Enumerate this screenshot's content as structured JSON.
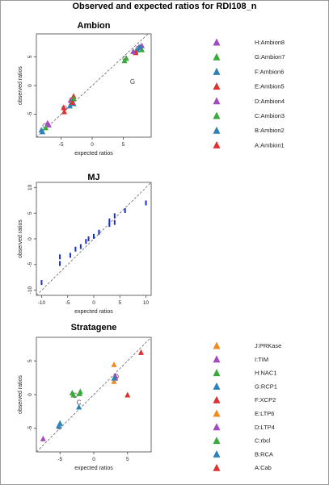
{
  "figure_title": "Observed and expected ratios for RDI108_n",
  "chart_data": [
    {
      "type": "scatter",
      "title": "Ambion",
      "xlabel": "expected ratios",
      "ylabel": "observed ratios",
      "xlim": [
        -9,
        9.5
      ],
      "ylim": [
        -9,
        9
      ],
      "xticks": [
        -5,
        0,
        5
      ],
      "yticks": [
        -5,
        0,
        5
      ],
      "diagonal": true,
      "marker": "triangle",
      "annotations": [
        {
          "text": "G",
          "x": 6.5,
          "y": 0.3
        }
      ],
      "legend": [
        "H:Ambion8",
        "G:Ambion7",
        "F:Ambion6",
        "E:Ambion5",
        "D:Ambion4",
        "C:Ambion3",
        "B:Ambion2",
        "A:Ambion1"
      ],
      "legend_colors": [
        "#a349c2",
        "#3aaa3a",
        "#2e82b8",
        "#e03030",
        "#a349c2",
        "#3aaa3a",
        "#2e82b8",
        "#e03030"
      ],
      "series": [
        {
          "name": "H:Ambion8",
          "color": "#a349c2",
          "points": [
            [
              8,
              7
            ],
            [
              7.5,
              6.7
            ],
            [
              -7,
              -6.8
            ],
            [
              -3.5,
              -2.5
            ]
          ]
        },
        {
          "name": "G:Ambion7",
          "color": "#3aaa3a",
          "points": [
            [
              7,
              6
            ],
            [
              5.5,
              4.8
            ],
            [
              -3.3,
              -2.8
            ],
            [
              -7.5,
              -7.3
            ]
          ]
        },
        {
          "name": "F:Ambion6",
          "color": "#2e82b8",
          "points": [
            [
              7.3,
              6.3
            ],
            [
              -8.2,
              -7.7
            ],
            [
              -3,
              -3.1
            ]
          ]
        },
        {
          "name": "E:Ambion5",
          "color": "#e03030",
          "points": [
            [
              -4.5,
              -4.5
            ],
            [
              -3,
              -1.8
            ],
            [
              7,
              5.8
            ]
          ]
        },
        {
          "name": "D:Ambion4",
          "color": "#a349c2",
          "points": [
            [
              6.6,
              6
            ],
            [
              -7.2,
              -6.5
            ]
          ]
        },
        {
          "name": "C:Ambion3",
          "color": "#3aaa3a",
          "points": [
            [
              -3,
              -2.2
            ],
            [
              8,
              6.3
            ],
            [
              5.2,
              4.4
            ]
          ]
        },
        {
          "name": "B:Ambion2",
          "color": "#2e82b8",
          "points": [
            [
              -8,
              -8
            ],
            [
              -3.6,
              -3.5
            ],
            [
              7.7,
              6.8
            ]
          ]
        },
        {
          "name": "A:Ambion1",
          "color": "#e03030",
          "points": [
            [
              -4.6,
              -3.8
            ],
            [
              -3.2,
              -2.9
            ]
          ]
        }
      ],
      "open_circles": [
        [
          5.3,
          4.7
        ],
        [
          7.4,
          6.5
        ],
        [
          -4.5,
          -3.9
        ],
        [
          -7.6,
          -7.0
        ],
        [
          -3.1,
          -2.4
        ]
      ]
    },
    {
      "type": "scatter",
      "title": "MJ",
      "xlabel": "expected ratios",
      "ylabel": "observed ratios",
      "xlim": [
        -11,
        11
      ],
      "ylim": [
        -11,
        11
      ],
      "xticks": [
        -10,
        -5,
        0,
        5,
        10
      ],
      "yticks": [
        -10,
        -5,
        0,
        5,
        10
      ],
      "diagonal": true,
      "marker": "vbar",
      "color": "#1a2fd0",
      "points": [
        [
          -10,
          -8.5
        ],
        [
          -6.5,
          -3.5
        ],
        [
          -6.5,
          -4.8
        ],
        [
          -4.5,
          -3.2
        ],
        [
          -3.5,
          -2
        ],
        [
          -2.5,
          -1.5
        ],
        [
          -1.5,
          -0.5
        ],
        [
          -1,
          0
        ],
        [
          0,
          0.5
        ],
        [
          1,
          1.3
        ],
        [
          3,
          2.8
        ],
        [
          3,
          3.5
        ],
        [
          4,
          3.2
        ],
        [
          4,
          4.5
        ],
        [
          6,
          5.5
        ],
        [
          10,
          7
        ]
      ]
    },
    {
      "type": "scatter",
      "title": "Stratagene",
      "xlabel": "expected ratios",
      "ylabel": "observed ratios",
      "xlim": [
        -8.5,
        8.5
      ],
      "ylim": [
        -8.5,
        8.5
      ],
      "xticks": [
        -5,
        0,
        5
      ],
      "yticks": [
        -5,
        0,
        5
      ],
      "diagonal": true,
      "marker": "triangle",
      "annotations": [
        {
          "text": "C",
          "x": -2.2,
          "y": -1.5
        }
      ],
      "legend": [
        "J:PRKase",
        "I:TIM",
        "H:NAC1",
        "G:RCP1",
        "F:XCP2",
        "E:LTP6",
        "D:LTP4",
        "C:rbcl",
        "B:RCA",
        "A:Cab"
      ],
      "legend_colors": [
        "#f28a1c",
        "#a349c2",
        "#3aaa3a",
        "#2e82b8",
        "#e03030",
        "#f28a1c",
        "#a349c2",
        "#3aaa3a",
        "#2e82b8",
        "#e03030"
      ],
      "series": [
        {
          "name": "J:PRKase",
          "color": "#f28a1c",
          "points": [
            [
              3,
              4.5
            ]
          ]
        },
        {
          "name": "I:TIM",
          "color": "#a349c2",
          "points": [
            [
              -7.5,
              -6.5
            ],
            [
              3.2,
              2.5
            ]
          ]
        },
        {
          "name": "H:NAC1",
          "color": "#3aaa3a",
          "points": [
            [
              -3.2,
              0.3
            ],
            [
              -2,
              0.5
            ]
          ]
        },
        {
          "name": "G:RCP1",
          "color": "#2e82b8",
          "points": [
            [
              -5.2,
              -4.6
            ],
            [
              -2.2,
              -1.8
            ]
          ]
        },
        {
          "name": "F:XCP2",
          "color": "#e03030",
          "points": [
            [
              5,
              0
            ]
          ]
        },
        {
          "name": "E:LTP6",
          "color": "#f28a1c",
          "points": [
            [
              3,
              2
            ]
          ]
        },
        {
          "name": "D:LTP4",
          "color": "#a349c2",
          "points": [
            [
              3.2,
              2.8
            ]
          ]
        },
        {
          "name": "C:rbcl",
          "color": "#3aaa3a",
          "points": [
            [
              -3,
              0
            ],
            [
              -2.1,
              0.2
            ]
          ]
        },
        {
          "name": "B:RCA",
          "color": "#2e82b8",
          "points": [
            [
              -5,
              -4.2
            ],
            [
              3,
              2.5
            ]
          ]
        },
        {
          "name": "A:Cab",
          "color": "#e03030",
          "points": [
            [
              7,
              6.3
            ]
          ]
        }
      ],
      "open_circles": [
        [
          -2.8,
          -0.1
        ],
        [
          3.3,
          2.7
        ],
        [
          -5.1,
          -4.8
        ]
      ]
    }
  ]
}
